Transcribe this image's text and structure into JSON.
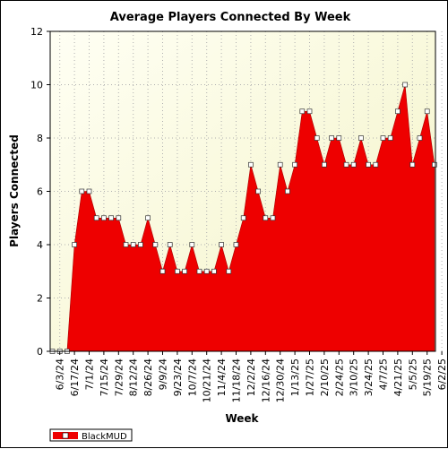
{
  "chart_data": {
    "type": "area",
    "title": "Average Players Connected By Week",
    "xlabel": "Week",
    "ylabel": "Players Connected",
    "ylim": [
      0,
      12
    ],
    "yticks": [
      0,
      2,
      4,
      6,
      8,
      10,
      12
    ],
    "grid": true,
    "legend_position": "bottom-left",
    "x": [
      "5/27/24",
      "6/3/24",
      "6/10/24",
      "6/17/24",
      "6/24/24",
      "7/1/24",
      "7/8/24",
      "7/15/24",
      "7/22/24",
      "7/29/24",
      "8/5/24",
      "8/12/24",
      "8/19/24",
      "8/26/24",
      "9/2/24",
      "9/9/24",
      "9/16/24",
      "9/23/24",
      "9/30/24",
      "10/7/24",
      "10/14/24",
      "10/21/24",
      "10/28/24",
      "11/4/24",
      "11/11/24",
      "11/18/24",
      "11/25/24",
      "12/2/24",
      "12/9/24",
      "12/16/24",
      "12/23/24",
      "12/30/24",
      "1/6/25",
      "1/13/25",
      "1/20/25",
      "1/27/25",
      "2/3/25",
      "2/10/25",
      "2/17/25",
      "2/24/25",
      "3/3/25",
      "3/10/25",
      "3/17/25",
      "3/24/25",
      "3/31/25",
      "4/7/25",
      "4/14/25",
      "4/21/25",
      "4/28/25",
      "5/5/25",
      "5/12/25",
      "5/19/25",
      "5/26/25",
      "6/2/25"
    ],
    "xtick_labels": [
      "6/3/24",
      "6/17/24",
      "7/1/24",
      "7/15/24",
      "7/29/24",
      "8/12/24",
      "8/26/24",
      "9/9/24",
      "9/23/24",
      "10/7/24",
      "10/21/24",
      "11/4/24",
      "11/18/24",
      "12/2/24",
      "12/16/24",
      "12/30/24",
      "1/13/25",
      "1/27/25",
      "2/10/25",
      "2/24/25",
      "3/10/25",
      "3/24/25",
      "4/7/25",
      "4/21/25",
      "5/5/25",
      "5/19/25",
      "6/2/25"
    ],
    "series": [
      {
        "name": "BlackMUD",
        "color": "#ee0000",
        "values": [
          0,
          0,
          0,
          4,
          6,
          6,
          5,
          5,
          5,
          5,
          4,
          4,
          4,
          5,
          4,
          3,
          4,
          3,
          3,
          4,
          3,
          3,
          3,
          4,
          3,
          4,
          5,
          7,
          6,
          5,
          5,
          7,
          6,
          7,
          9,
          9,
          8,
          7,
          8,
          8,
          7,
          7,
          8,
          7,
          7,
          8,
          8,
          9,
          10,
          7,
          8,
          9,
          7,
          null
        ]
      }
    ]
  },
  "colors": {
    "plot_background_top": "#fffff0",
    "plot_background_bottom": "#f5f5c8",
    "area_fill": "#ee0000",
    "marker_fill": "#ffffff",
    "grid": "#b0b0b0"
  }
}
